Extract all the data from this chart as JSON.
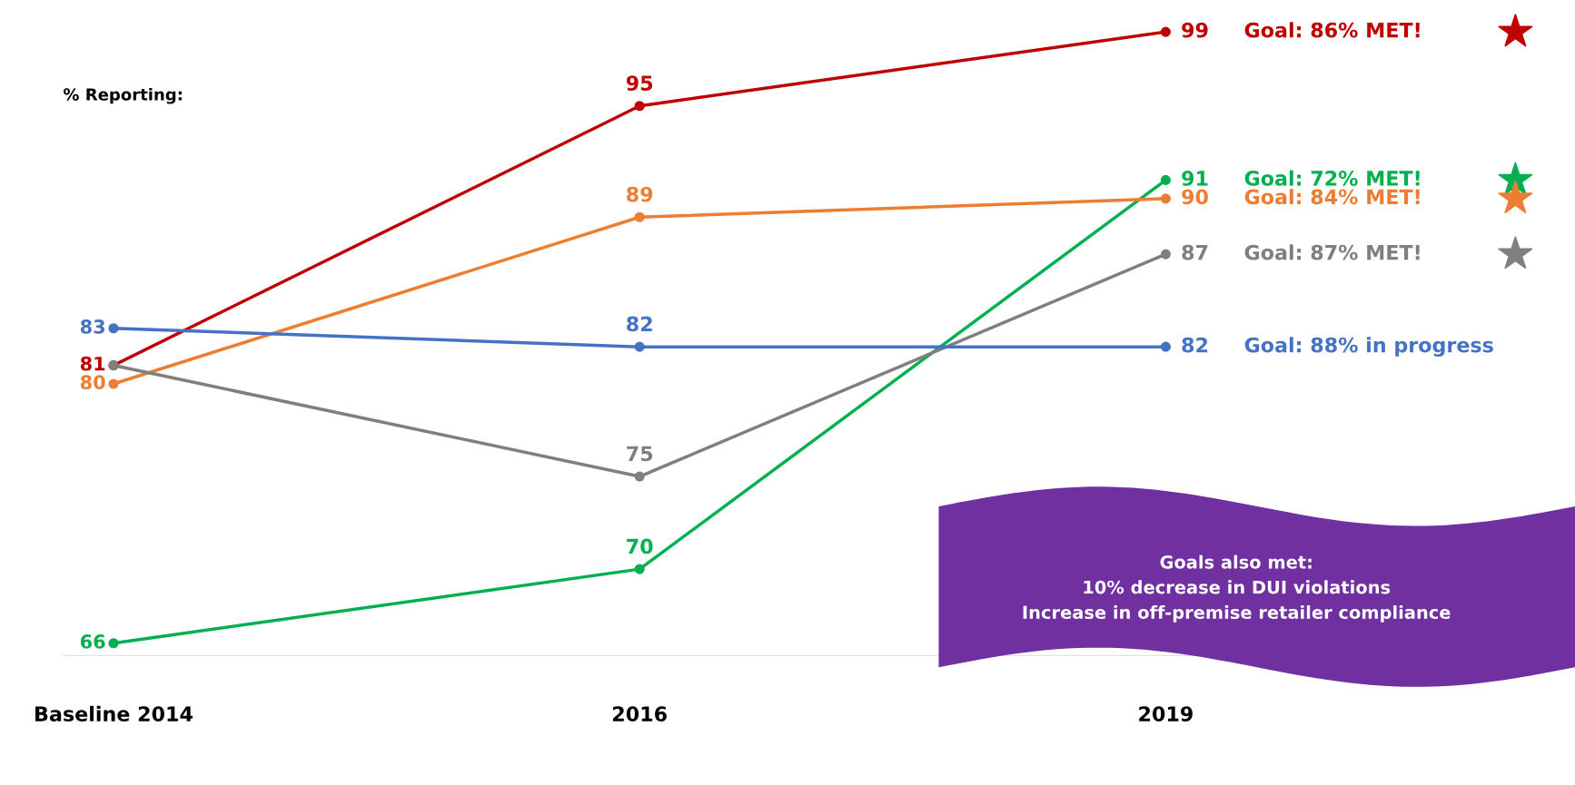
{
  "chart_data": {
    "type": "line",
    "categories": [
      "Baseline 2014",
      "2016",
      "2019"
    ],
    "series": [
      {
        "color": "#c00000",
        "values": [
          81,
          95,
          99
        ],
        "value_labels": [
          "81",
          "95",
          "99"
        ]
      },
      {
        "color": "#00b050",
        "values": [
          66,
          70,
          91
        ],
        "value_labels": [
          "66",
          "70",
          "91"
        ]
      },
      {
        "color": "#ed7d31",
        "values": [
          80,
          89,
          90
        ],
        "value_labels": [
          "80",
          "89",
          "90"
        ]
      },
      {
        "color": "#7f7f7f",
        "values": [
          81,
          75,
          87
        ],
        "value_labels": [
          null,
          "75",
          "87"
        ]
      },
      {
        "color": "#4472c4",
        "values": [
          83,
          82,
          82
        ],
        "value_labels": [
          "83",
          "82",
          "82"
        ]
      }
    ],
    "tick_labels": "x",
    "marker": "circle",
    "line_style": "solid",
    "grid": false,
    "legend": false,
    "annotations": [
      "% Reporting:",
      "Goals also met:\n10% decrease in DUI violations\nIncrease in off-premise retailer compliance",
      "Goal: 86% MET!",
      "Goal: 72% MET!",
      "Goal: 84% MET!",
      "Goal: 87% MET!",
      "Goal: 88% in progress"
    ]
  }
}
